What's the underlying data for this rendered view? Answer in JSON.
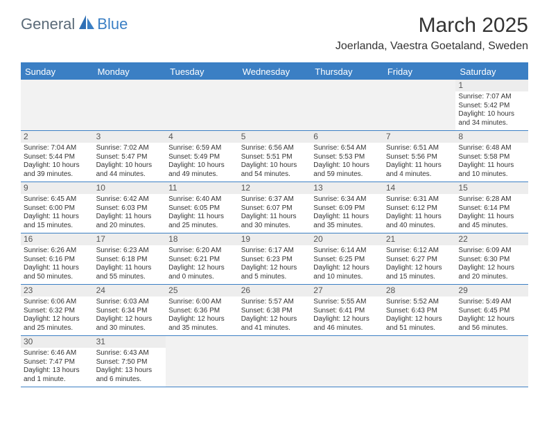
{
  "logo": {
    "part1": "General",
    "part2": "Blue"
  },
  "title": "March 2025",
  "location": "Joerlanda, Vaestra Goetaland, Sweden",
  "day_names": [
    "Sunday",
    "Monday",
    "Tuesday",
    "Wednesday",
    "Thursday",
    "Friday",
    "Saturday"
  ],
  "header_bg": "#3b7fc4",
  "weeks": [
    [
      null,
      null,
      null,
      null,
      null,
      null,
      {
        "n": "1",
        "sr": "7:07 AM",
        "ss": "5:42 PM",
        "dl": "10 hours and 34 minutes."
      }
    ],
    [
      {
        "n": "2",
        "sr": "7:04 AM",
        "ss": "5:44 PM",
        "dl": "10 hours and 39 minutes."
      },
      {
        "n": "3",
        "sr": "7:02 AM",
        "ss": "5:47 PM",
        "dl": "10 hours and 44 minutes."
      },
      {
        "n": "4",
        "sr": "6:59 AM",
        "ss": "5:49 PM",
        "dl": "10 hours and 49 minutes."
      },
      {
        "n": "5",
        "sr": "6:56 AM",
        "ss": "5:51 PM",
        "dl": "10 hours and 54 minutes."
      },
      {
        "n": "6",
        "sr": "6:54 AM",
        "ss": "5:53 PM",
        "dl": "10 hours and 59 minutes."
      },
      {
        "n": "7",
        "sr": "6:51 AM",
        "ss": "5:56 PM",
        "dl": "11 hours and 4 minutes."
      },
      {
        "n": "8",
        "sr": "6:48 AM",
        "ss": "5:58 PM",
        "dl": "11 hours and 10 minutes."
      }
    ],
    [
      {
        "n": "9",
        "sr": "6:45 AM",
        "ss": "6:00 PM",
        "dl": "11 hours and 15 minutes."
      },
      {
        "n": "10",
        "sr": "6:42 AM",
        "ss": "6:03 PM",
        "dl": "11 hours and 20 minutes."
      },
      {
        "n": "11",
        "sr": "6:40 AM",
        "ss": "6:05 PM",
        "dl": "11 hours and 25 minutes."
      },
      {
        "n": "12",
        "sr": "6:37 AM",
        "ss": "6:07 PM",
        "dl": "11 hours and 30 minutes."
      },
      {
        "n": "13",
        "sr": "6:34 AM",
        "ss": "6:09 PM",
        "dl": "11 hours and 35 minutes."
      },
      {
        "n": "14",
        "sr": "6:31 AM",
        "ss": "6:12 PM",
        "dl": "11 hours and 40 minutes."
      },
      {
        "n": "15",
        "sr": "6:28 AM",
        "ss": "6:14 PM",
        "dl": "11 hours and 45 minutes."
      }
    ],
    [
      {
        "n": "16",
        "sr": "6:26 AM",
        "ss": "6:16 PM",
        "dl": "11 hours and 50 minutes."
      },
      {
        "n": "17",
        "sr": "6:23 AM",
        "ss": "6:18 PM",
        "dl": "11 hours and 55 minutes."
      },
      {
        "n": "18",
        "sr": "6:20 AM",
        "ss": "6:21 PM",
        "dl": "12 hours and 0 minutes."
      },
      {
        "n": "19",
        "sr": "6:17 AM",
        "ss": "6:23 PM",
        "dl": "12 hours and 5 minutes."
      },
      {
        "n": "20",
        "sr": "6:14 AM",
        "ss": "6:25 PM",
        "dl": "12 hours and 10 minutes."
      },
      {
        "n": "21",
        "sr": "6:12 AM",
        "ss": "6:27 PM",
        "dl": "12 hours and 15 minutes."
      },
      {
        "n": "22",
        "sr": "6:09 AM",
        "ss": "6:30 PM",
        "dl": "12 hours and 20 minutes."
      }
    ],
    [
      {
        "n": "23",
        "sr": "6:06 AM",
        "ss": "6:32 PM",
        "dl": "12 hours and 25 minutes."
      },
      {
        "n": "24",
        "sr": "6:03 AM",
        "ss": "6:34 PM",
        "dl": "12 hours and 30 minutes."
      },
      {
        "n": "25",
        "sr": "6:00 AM",
        "ss": "6:36 PM",
        "dl": "12 hours and 35 minutes."
      },
      {
        "n": "26",
        "sr": "5:57 AM",
        "ss": "6:38 PM",
        "dl": "12 hours and 41 minutes."
      },
      {
        "n": "27",
        "sr": "5:55 AM",
        "ss": "6:41 PM",
        "dl": "12 hours and 46 minutes."
      },
      {
        "n": "28",
        "sr": "5:52 AM",
        "ss": "6:43 PM",
        "dl": "12 hours and 51 minutes."
      },
      {
        "n": "29",
        "sr": "5:49 AM",
        "ss": "6:45 PM",
        "dl": "12 hours and 56 minutes."
      }
    ],
    [
      {
        "n": "30",
        "sr": "6:46 AM",
        "ss": "7:47 PM",
        "dl": "13 hours and 1 minute."
      },
      {
        "n": "31",
        "sr": "6:43 AM",
        "ss": "7:50 PM",
        "dl": "13 hours and 6 minutes."
      },
      null,
      null,
      null,
      null,
      null
    ]
  ],
  "labels": {
    "sunrise": "Sunrise:",
    "sunset": "Sunset:",
    "daylight": "Daylight:"
  }
}
